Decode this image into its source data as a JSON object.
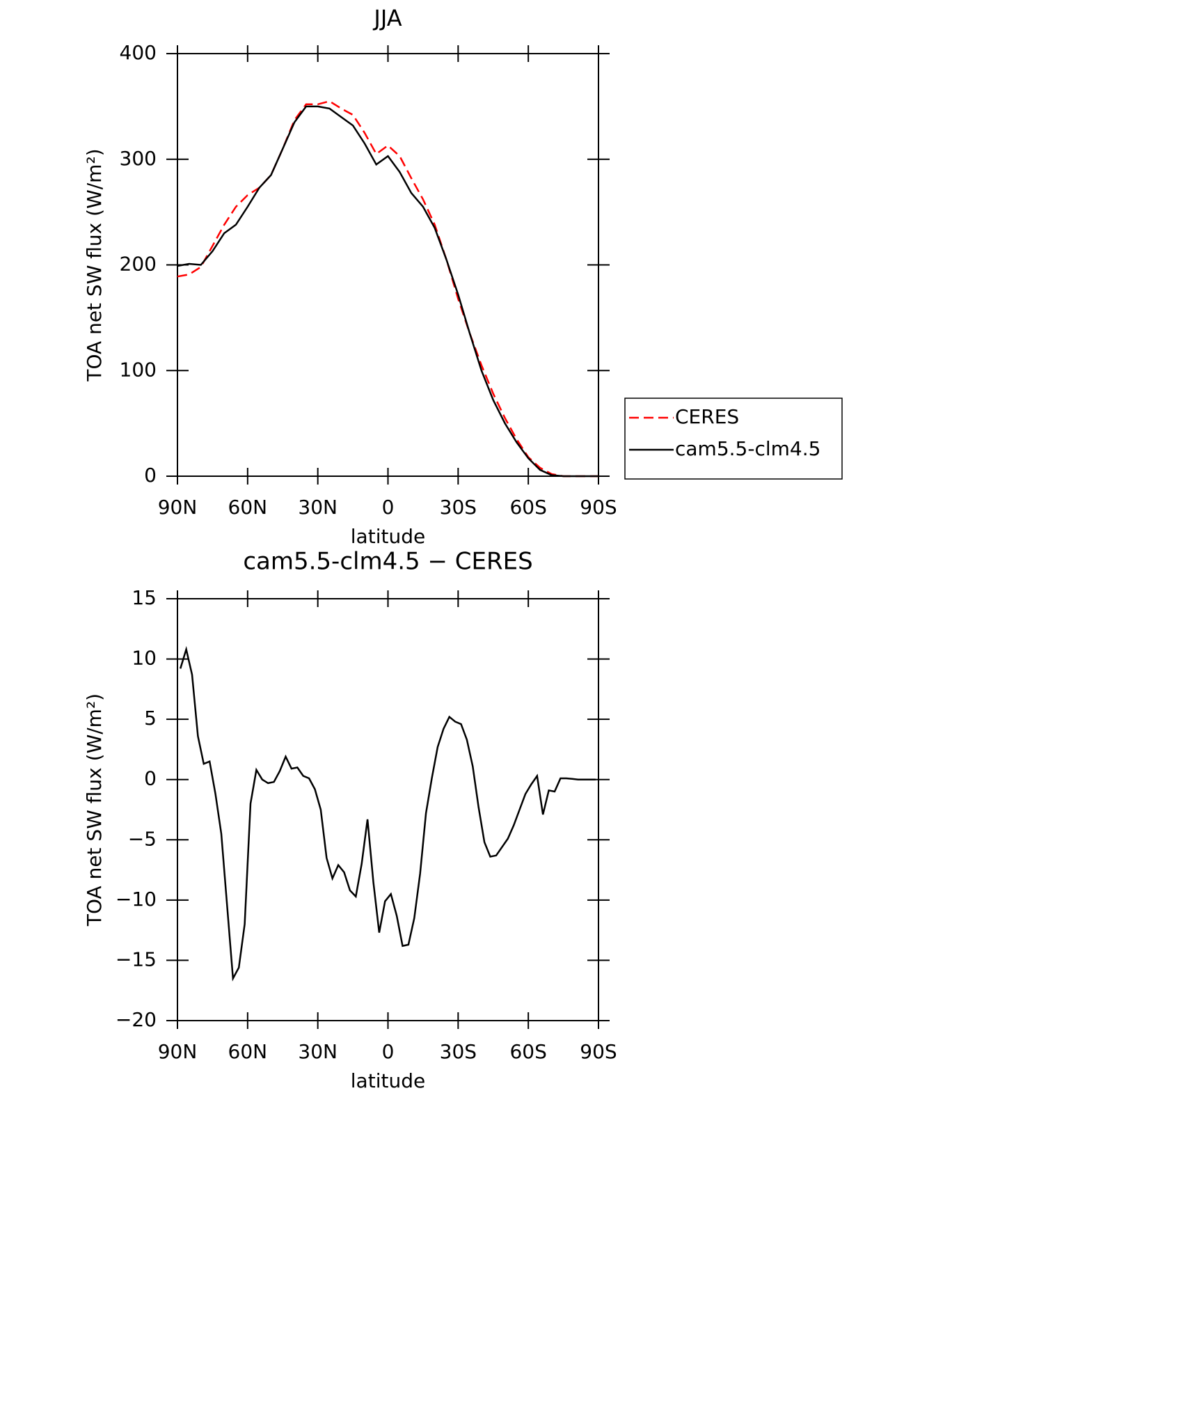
{
  "chart_data": [
    {
      "type": "line",
      "title": "JJA",
      "xlabel": "latitude",
      "ylabel": "TOA net SW flux (W/m²)",
      "x": [
        90,
        85,
        80,
        75,
        70,
        65,
        60,
        55,
        50,
        45,
        40,
        35,
        30,
        25,
        20,
        15,
        10,
        5,
        0,
        -5,
        -10,
        -15,
        -20,
        -25,
        -30,
        -35,
        -40,
        -45,
        -50,
        -55,
        -60,
        -65,
        -70,
        -75,
        -80,
        -85,
        -90
      ],
      "series": [
        {
          "name": "CERES",
          "color": "#ff0000",
          "line_style": "dashed",
          "values": [
            189,
            191,
            198,
            218,
            238,
            255,
            266,
            273,
            285,
            310,
            337,
            352,
            352,
            355,
            348,
            342,
            325,
            305,
            313,
            303,
            282,
            262,
            238,
            205,
            168,
            135,
            105,
            78,
            55,
            35,
            18,
            8,
            2,
            0,
            0,
            0,
            0
          ]
        },
        {
          "name": "cam5.5-clm4.5",
          "color": "#000000",
          "line_style": "solid",
          "values": [
            199,
            201,
            200,
            213,
            230,
            238,
            255,
            273,
            285,
            310,
            335,
            350,
            350,
            348,
            340,
            332,
            315,
            295,
            303,
            288,
            268,
            255,
            235,
            205,
            172,
            135,
            100,
            72,
            50,
            32,
            17,
            6,
            1,
            0,
            0,
            0,
            0
          ]
        }
      ],
      "xlim": [
        90,
        -90
      ],
      "xticks": [
        {
          "value": 90,
          "label": "90N"
        },
        {
          "value": 60,
          "label": "60N"
        },
        {
          "value": 30,
          "label": "30N"
        },
        0,
        {
          "value": -30,
          "label": "30S"
        },
        {
          "value": -60,
          "label": "60S"
        },
        {
          "value": -90,
          "label": "90S"
        }
      ],
      "ylim": [
        0,
        400
      ],
      "yticks": [
        0,
        100,
        200,
        300,
        400
      ],
      "legend": "right"
    },
    {
      "type": "line",
      "title": "cam5.5-clm4.5 − CERES",
      "xlabel": "latitude",
      "ylabel": "TOA net SW flux (W/m²)",
      "x": [
        88.75,
        86.25,
        83.75,
        81.25,
        78.75,
        76.25,
        73.75,
        71.25,
        68.75,
        66.25,
        63.75,
        61.25,
        58.75,
        56.25,
        53.75,
        51.25,
        48.75,
        46.25,
        43.75,
        41.25,
        38.75,
        36.25,
        33.75,
        31.25,
        28.75,
        26.25,
        23.75,
        21.25,
        18.75,
        16.25,
        13.75,
        11.25,
        8.75,
        6.25,
        3.75,
        1.25,
        -1.25,
        -3.75,
        -6.25,
        -8.75,
        -11.25,
        -13.75,
        -16.25,
        -18.75,
        -21.25,
        -23.75,
        -26.25,
        -28.75,
        -31.25,
        -33.75,
        -36.25,
        -38.75,
        -41.25,
        -43.75,
        -46.25,
        -48.75,
        -51.25,
        -53.75,
        -56.25,
        -58.75,
        -61.25,
        -63.75,
        -66.25,
        -68.75,
        -71.25,
        -73.75,
        -76.25,
        -78.75,
        -81.25,
        -83.75,
        -86.25,
        -88.75
      ],
      "series": [
        {
          "name": "cam5.5-clm4.5 − CERES",
          "color": "#000000",
          "line_style": "solid",
          "values": [
            9.2,
            10.8,
            8.7,
            3.6,
            1.3,
            1.5,
            -1.2,
            -4.5,
            -10.5,
            -16.5,
            -15.6,
            -12,
            -2,
            0.8,
            0,
            -0.3,
            -0.2,
            0.7,
            1.9,
            0.9,
            1.0,
            0.3,
            0.1,
            -0.8,
            -2.5,
            -6.5,
            -8.2,
            -7.1,
            -7.7,
            -9.2,
            -9.7,
            -7.0,
            -3.3,
            -8.5,
            -12.7,
            -10.1,
            -9.5,
            -11.3,
            -13.8,
            -13.7,
            -11.5,
            -7.8,
            -2.8,
            0.1,
            2.7,
            4.2,
            5.2,
            4.8,
            4.6,
            3.3,
            1.1,
            -2.3,
            -5.2,
            -6.4,
            -6.3,
            -5.6,
            -4.9,
            -3.8,
            -2.5,
            -1.2,
            -0.4,
            0.3,
            -2.9,
            -0.9,
            -1.0,
            0.1,
            0.1,
            0.05,
            0,
            0,
            0,
            0
          ]
        }
      ],
      "xlim": [
        90,
        -90
      ],
      "xticks": [
        {
          "value": 90,
          "label": "90N"
        },
        {
          "value": 60,
          "label": "60N"
        },
        {
          "value": 30,
          "label": "30N"
        },
        0,
        {
          "value": -30,
          "label": "30S"
        },
        {
          "value": -60,
          "label": "60S"
        },
        {
          "value": -90,
          "label": "90S"
        }
      ],
      "ylim": [
        -20,
        15
      ],
      "yticks": [
        {
          "value": -20,
          "label": "−20"
        },
        {
          "value": -15,
          "label": "−15"
        },
        {
          "value": -10,
          "label": "−10"
        },
        {
          "value": -5,
          "label": "−5"
        },
        0,
        5,
        10,
        15
      ]
    }
  ]
}
